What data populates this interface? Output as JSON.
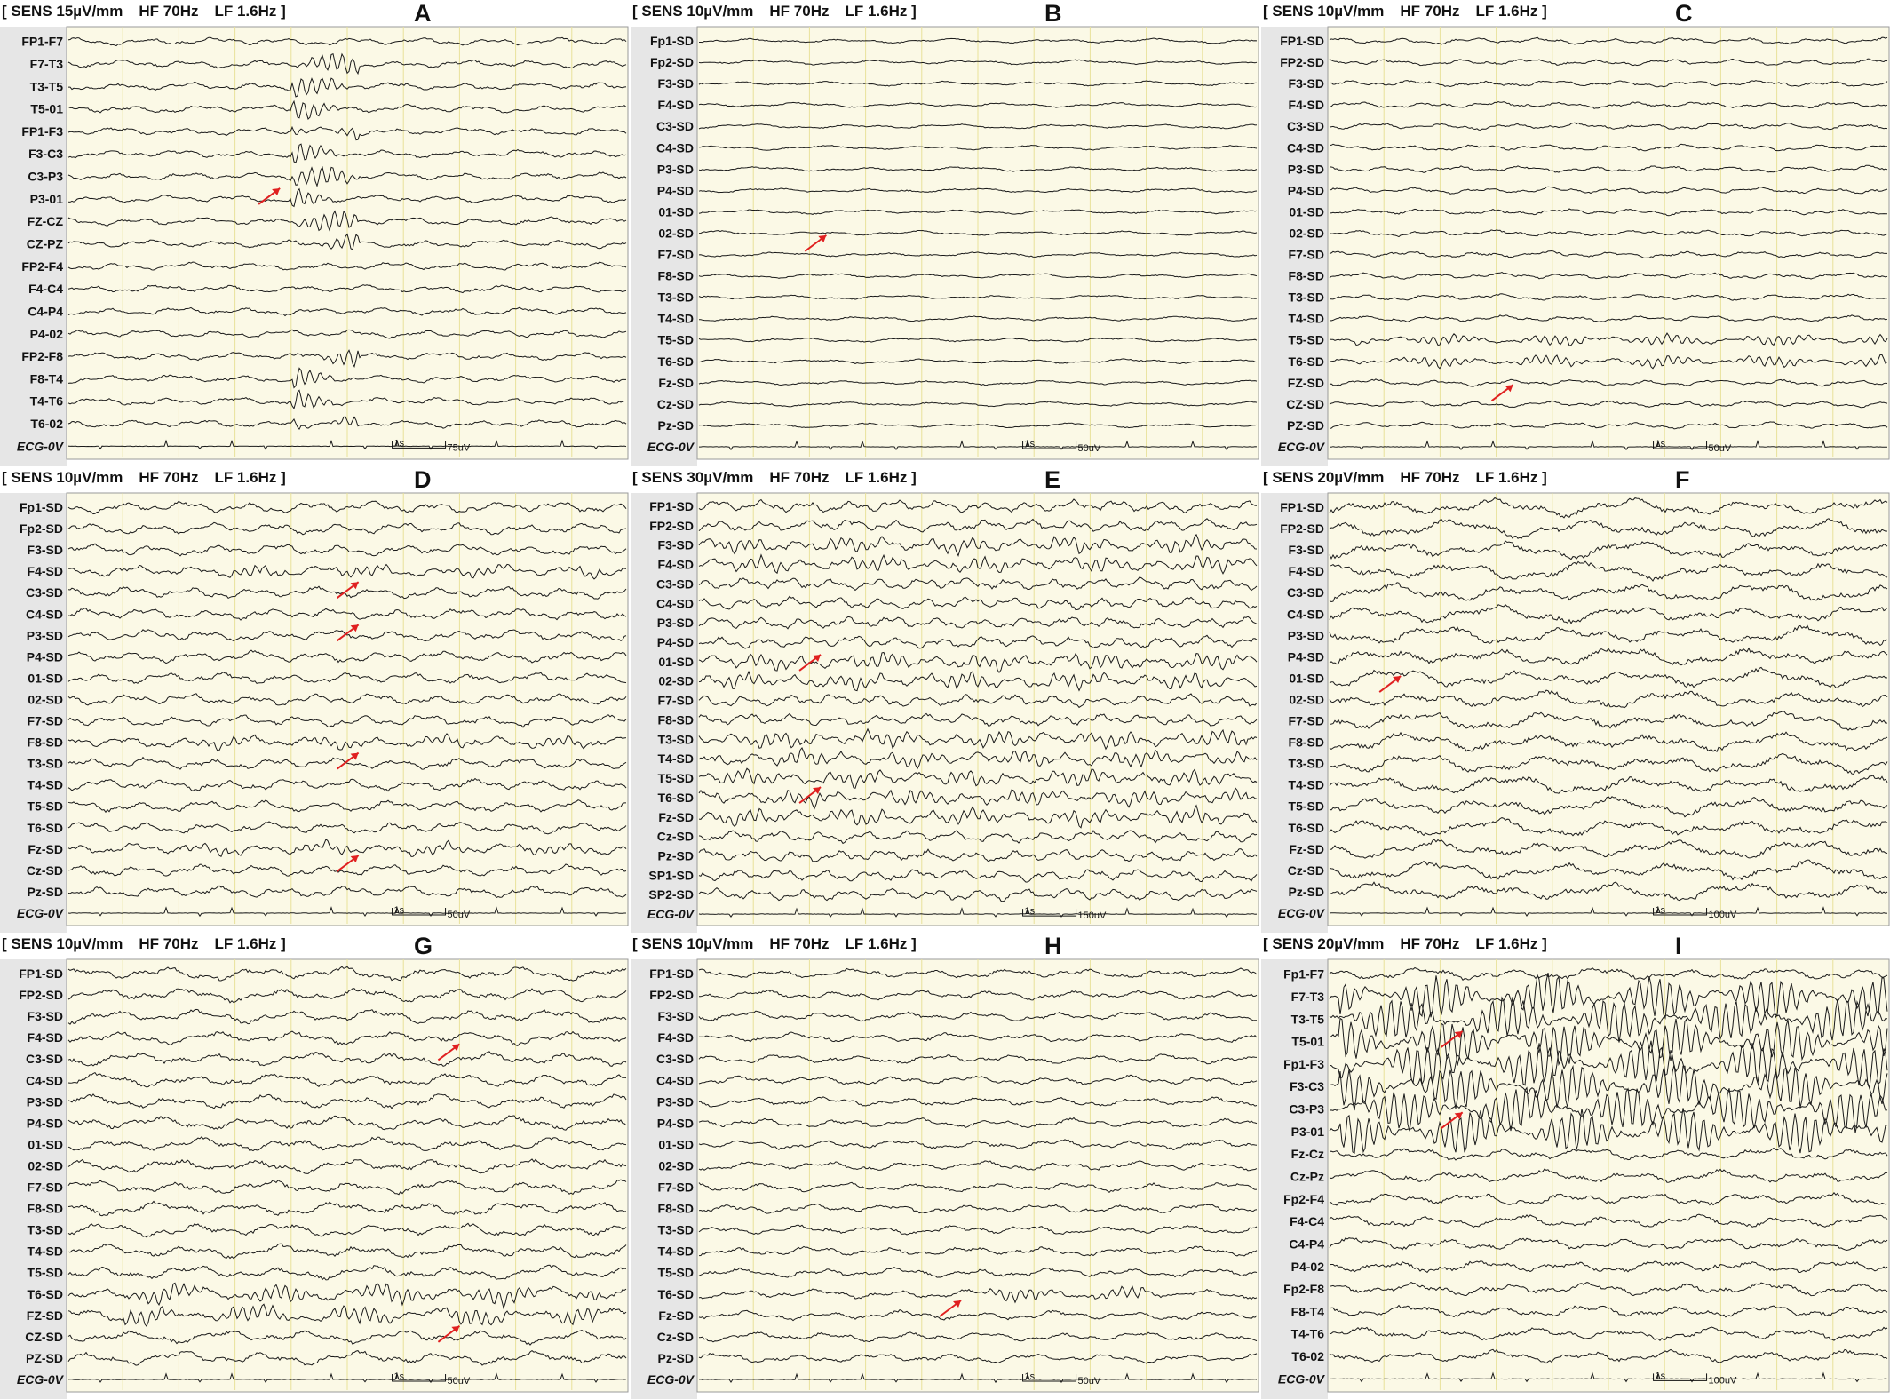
{
  "panels": [
    {
      "letter": "A",
      "sens": "[ SENS 15µV/mm",
      "hf": "HF 70Hz",
      "lf": "LF 1.6Hz ]",
      "scale_time": "1s",
      "scale_amp": "75uV",
      "channels": [
        "FP1-F7",
        "F7-T3",
        "T3-T5",
        "T5-01",
        "FP1-F3",
        "F3-C3",
        "C3-P3",
        "P3-01",
        "FZ-CZ",
        "CZ-PZ",
        "FP2-F4",
        "F4-C4",
        "C4-P4",
        "P4-02",
        "FP2-F8",
        "F8-T4",
        "T4-T6",
        "T6-02",
        "ECG-0V"
      ]
    },
    {
      "letter": "B",
      "sens": "[ SENS 10µV/mm",
      "hf": "HF 70Hz",
      "lf": "LF 1.6Hz ]",
      "scale_time": "1s",
      "scale_amp": "50uV",
      "channels": [
        "Fp1-SD",
        "Fp2-SD",
        "F3-SD",
        "F4-SD",
        "C3-SD",
        "C4-SD",
        "P3-SD",
        "P4-SD",
        "01-SD",
        "02-SD",
        "F7-SD",
        "F8-SD",
        "T3-SD",
        "T4-SD",
        "T5-SD",
        "T6-SD",
        "Fz-SD",
        "Cz-SD",
        "Pz-SD",
        "ECG-0V"
      ]
    },
    {
      "letter": "C",
      "sens": "[ SENS 10µV/mm",
      "hf": "HF 70Hz",
      "lf": "LF 1.6Hz ]",
      "scale_time": "1s",
      "scale_amp": "50uV",
      "channels": [
        "FP1-SD",
        "FP2-SD",
        "F3-SD",
        "F4-SD",
        "C3-SD",
        "C4-SD",
        "P3-SD",
        "P4-SD",
        "01-SD",
        "02-SD",
        "F7-SD",
        "F8-SD",
        "T3-SD",
        "T4-SD",
        "T5-SD",
        "T6-SD",
        "FZ-SD",
        "CZ-SD",
        "PZ-SD",
        "ECG-0V"
      ]
    },
    {
      "letter": "D",
      "sens": "[ SENS 10µV/mm",
      "hf": "HF 70Hz",
      "lf": "LF 1.6Hz ]",
      "scale_time": "1s",
      "scale_amp": "50uV",
      "channels": [
        "Fp1-SD",
        "Fp2-SD",
        "F3-SD",
        "F4-SD",
        "C3-SD",
        "C4-SD",
        "P3-SD",
        "P4-SD",
        "01-SD",
        "02-SD",
        "F7-SD",
        "F8-SD",
        "T3-SD",
        "T4-SD",
        "T5-SD",
        "T6-SD",
        "Fz-SD",
        "Cz-SD",
        "Pz-SD",
        "ECG-0V"
      ]
    },
    {
      "letter": "E",
      "sens": "[ SENS 30µV/mm",
      "hf": "HF 70Hz",
      "lf": "LF 1.6Hz ]",
      "scale_time": "1s",
      "scale_amp": "150uV",
      "channels": [
        "FP1-SD",
        "FP2-SD",
        "F3-SD",
        "F4-SD",
        "C3-SD",
        "C4-SD",
        "P3-SD",
        "P4-SD",
        "01-SD",
        "02-SD",
        "F7-SD",
        "F8-SD",
        "T3-SD",
        "T4-SD",
        "T5-SD",
        "T6-SD",
        "Fz-SD",
        "Cz-SD",
        "Pz-SD",
        "SP1-SD",
        "SP2-SD",
        "ECG-0V"
      ]
    },
    {
      "letter": "F",
      "sens": "[ SENS 20µV/mm",
      "hf": "HF 70Hz",
      "lf": "LF 1.6Hz ]",
      "scale_time": "1s",
      "scale_amp": "100uV",
      "channels": [
        "FP1-SD",
        "FP2-SD",
        "F3-SD",
        "F4-SD",
        "C3-SD",
        "C4-SD",
        "P3-SD",
        "P4-SD",
        "01-SD",
        "02-SD",
        "F7-SD",
        "F8-SD",
        "T3-SD",
        "T4-SD",
        "T5-SD",
        "T6-SD",
        "Fz-SD",
        "Cz-SD",
        "Pz-SD",
        "ECG-0V"
      ]
    },
    {
      "letter": "G",
      "sens": "[ SENS 10µV/mm",
      "hf": "HF 70Hz",
      "lf": "LF 1.6Hz ]",
      "scale_time": "1s",
      "scale_amp": "50uV",
      "channels": [
        "FP1-SD",
        "FP2-SD",
        "F3-SD",
        "F4-SD",
        "C3-SD",
        "C4-SD",
        "P3-SD",
        "P4-SD",
        "01-SD",
        "02-SD",
        "F7-SD",
        "F8-SD",
        "T3-SD",
        "T4-SD",
        "T5-SD",
        "T6-SD",
        "FZ-SD",
        "CZ-SD",
        "PZ-SD",
        "ECG-0V"
      ]
    },
    {
      "letter": "H",
      "sens": "[ SENS 10µV/mm",
      "hf": "HF 70Hz",
      "lf": "LF 1.6Hz ]",
      "scale_time": "1s",
      "scale_amp": "50uV",
      "channels": [
        "FP1-SD",
        "FP2-SD",
        "F3-SD",
        "F4-SD",
        "C3-SD",
        "C4-SD",
        "P3-SD",
        "P4-SD",
        "01-SD",
        "02-SD",
        "F7-SD",
        "F8-SD",
        "T3-SD",
        "T4-SD",
        "T5-SD",
        "T6-SD",
        "Fz-SD",
        "Cz-SD",
        "Pz-SD",
        "ECG-0V"
      ]
    },
    {
      "letter": "I",
      "sens": "[ SENS 20µV/mm",
      "hf": "HF 70Hz",
      "lf": "LF 1.6Hz ]",
      "scale_time": "1s",
      "scale_amp": "100uV",
      "channels": [
        "Fp1-F7",
        "F7-T3",
        "T3-T5",
        "T5-01",
        "Fp1-F3",
        "F3-C3",
        "C3-P3",
        "P3-01",
        "Fz-Cz",
        "Cz-Pz",
        "Fp2-F4",
        "F4-C4",
        "C4-P4",
        "P4-02",
        "Fp2-F8",
        "F8-T4",
        "T4-T6",
        "T6-02",
        "ECG-0V"
      ]
    }
  ],
  "colors": {
    "background": "#fbf9e6",
    "label_bg": "#e6e6e6",
    "trace": "#1a1a1a",
    "gridline": "#e8e29a",
    "arrow": "#e02020"
  }
}
